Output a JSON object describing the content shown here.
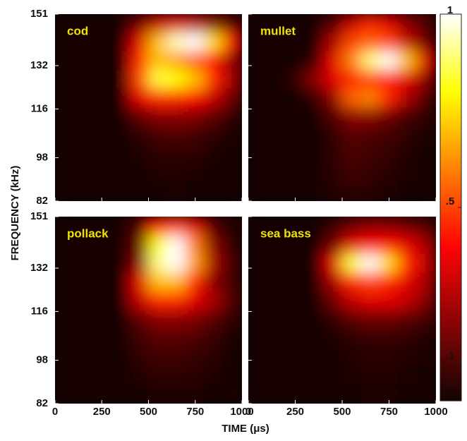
{
  "xlabel": "TIME (μs)",
  "ylabel": "FREQUENCY (kHz)",
  "colorbar": {
    "colormap": "hot",
    "lim": [
      0,
      1
    ],
    "ticks": [
      {
        "value": 0.1,
        "label": ".1"
      },
      {
        "value": 0.5,
        "label": ".5"
      },
      {
        "value": 1,
        "label": "1"
      }
    ]
  },
  "chart_data": [
    {
      "type": "heatmap",
      "title": "cod",
      "xbins": [
        0,
        100,
        200,
        300,
        400,
        500,
        600,
        700,
        800,
        900,
        1000
      ],
      "ybins": [
        151,
        144.1,
        137.2,
        130.3,
        123.4,
        116.5,
        109.6,
        102.7,
        95.8,
        88.9,
        82
      ],
      "xlim": [
        0,
        1000
      ],
      "ylim": [
        82,
        151
      ],
      "xticks": [
        0,
        250,
        500,
        750,
        1000
      ],
      "yticks": [
        82,
        98,
        116,
        132,
        151
      ],
      "z": [
        [
          0,
          0,
          0,
          0,
          0.15,
          0.3,
          0.35,
          0.3,
          0.2,
          0.1
        ],
        [
          0,
          0,
          0,
          0,
          0.35,
          0.7,
          0.95,
          1,
          0.75,
          0.4
        ],
        [
          0,
          0,
          0,
          0,
          0.45,
          0.7,
          0.65,
          0.55,
          0.4,
          0.2
        ],
        [
          0,
          0,
          0,
          0,
          0.5,
          0.85,
          0.8,
          0.7,
          0.45,
          0.25
        ],
        [
          0,
          0,
          0,
          0,
          0.35,
          0.45,
          0.45,
          0.4,
          0.3,
          0.15
        ],
        [
          0,
          0,
          0,
          0,
          0.12,
          0.2,
          0.2,
          0.18,
          0.12,
          0.05
        ],
        [
          0,
          0,
          0,
          0,
          0.05,
          0.08,
          0.1,
          0.08,
          0.05,
          0.02
        ],
        [
          0,
          0,
          0,
          0,
          0.02,
          0.05,
          0.05,
          0.05,
          0.02,
          0
        ],
        [
          0,
          0,
          0,
          0,
          0.01,
          0.03,
          0.03,
          0.02,
          0.01,
          0
        ],
        [
          0,
          0,
          0,
          0,
          0,
          0.01,
          0.02,
          0.01,
          0,
          0
        ]
      ]
    },
    {
      "type": "heatmap",
      "title": "mullet",
      "xbins": [
        0,
        100,
        200,
        300,
        400,
        500,
        600,
        700,
        800,
        900,
        1000
      ],
      "ybins": [
        151,
        144.1,
        137.2,
        130.3,
        123.4,
        116.5,
        109.6,
        102.7,
        95.8,
        88.9,
        82
      ],
      "xlim": [
        0,
        1000
      ],
      "ylim": [
        82,
        151
      ],
      "xticks": [
        0,
        250,
        500,
        750,
        1000
      ],
      "yticks": [
        82,
        98,
        116,
        132,
        151
      ],
      "z": [
        [
          0,
          0,
          0,
          0,
          0.1,
          0.3,
          0.45,
          0.35,
          0.2,
          0.1
        ],
        [
          0,
          0,
          0,
          0,
          0.25,
          0.5,
          0.55,
          0.5,
          0.3,
          0.15
        ],
        [
          0,
          0,
          0,
          0.05,
          0.35,
          0.6,
          0.9,
          1,
          0.7,
          0.35
        ],
        [
          0,
          0,
          0.05,
          0.2,
          0.35,
          0.45,
          0.5,
          0.45,
          0.35,
          0.2
        ],
        [
          0,
          0,
          0,
          0.05,
          0.2,
          0.55,
          0.6,
          0.45,
          0.25,
          0.1
        ],
        [
          0,
          0,
          0,
          0,
          0.1,
          0.2,
          0.2,
          0.15,
          0.08,
          0.04
        ],
        [
          0,
          0,
          0,
          0,
          0.05,
          0.12,
          0.1,
          0.08,
          0.05,
          0.02
        ],
        [
          0,
          0,
          0,
          0,
          0.05,
          0.1,
          0.08,
          0.06,
          0.03,
          0.01
        ],
        [
          0,
          0,
          0,
          0,
          0.04,
          0.08,
          0.06,
          0.04,
          0.02,
          0
        ],
        [
          0,
          0,
          0,
          0,
          0.03,
          0.05,
          0.04,
          0.02,
          0,
          0
        ]
      ]
    },
    {
      "type": "heatmap",
      "title": "pollack",
      "xbins": [
        0,
        100,
        200,
        300,
        400,
        500,
        600,
        700,
        800,
        900,
        1000
      ],
      "ybins": [
        151,
        144.1,
        137.2,
        130.3,
        123.4,
        116.5,
        109.6,
        102.7,
        95.8,
        88.9,
        82
      ],
      "xlim": [
        0,
        1000
      ],
      "ylim": [
        82,
        151
      ],
      "xticks": [
        0,
        250,
        500,
        750,
        1000
      ],
      "yticks": [
        82,
        98,
        116,
        132,
        151
      ],
      "z": [
        [
          0,
          0,
          0,
          0,
          0.1,
          0.4,
          0.5,
          0.35,
          0.1,
          0.03
        ],
        [
          0,
          0,
          0,
          0,
          0.15,
          0.8,
          1,
          0.6,
          0.2,
          0.05
        ],
        [
          0,
          0,
          0,
          0,
          0.2,
          0.9,
          1,
          0.65,
          0.25,
          0.08
        ],
        [
          0,
          0,
          0,
          0,
          0.35,
          0.7,
          0.7,
          0.45,
          0.2,
          0.08
        ],
        [
          0,
          0,
          0,
          0,
          0.3,
          0.45,
          0.45,
          0.35,
          0.25,
          0.1
        ],
        [
          0,
          0,
          0,
          0,
          0.12,
          0.2,
          0.2,
          0.18,
          0.12,
          0.05
        ],
        [
          0,
          0,
          0,
          0,
          0.08,
          0.12,
          0.12,
          0.1,
          0.06,
          0.02
        ],
        [
          0,
          0,
          0,
          0,
          0.05,
          0.08,
          0.08,
          0.06,
          0.04,
          0.01
        ],
        [
          0,
          0,
          0,
          0,
          0.03,
          0.05,
          0.05,
          0.04,
          0.02,
          0
        ],
        [
          0,
          0,
          0,
          0,
          0.01,
          0.02,
          0.02,
          0.02,
          0.01,
          0
        ]
      ]
    },
    {
      "type": "heatmap",
      "title": "sea bass",
      "xbins": [
        0,
        100,
        200,
        300,
        400,
        500,
        600,
        700,
        800,
        900,
        1000
      ],
      "ybins": [
        151,
        144.1,
        137.2,
        130.3,
        123.4,
        116.5,
        109.6,
        102.7,
        95.8,
        88.9,
        82
      ],
      "xlim": [
        0,
        1000
      ],
      "ylim": [
        82,
        151
      ],
      "xticks": [
        0,
        250,
        500,
        750,
        1000
      ],
      "yticks": [
        82,
        98,
        116,
        132,
        151
      ],
      "z": [
        [
          0,
          0,
          0,
          0,
          0.05,
          0.15,
          0.2,
          0.2,
          0.15,
          0.1
        ],
        [
          0,
          0,
          0,
          0,
          0.15,
          0.35,
          0.4,
          0.4,
          0.35,
          0.25
        ],
        [
          0,
          0,
          0,
          0,
          0.35,
          0.85,
          1,
          0.75,
          0.45,
          0.3
        ],
        [
          0,
          0,
          0,
          0,
          0.25,
          0.45,
          0.5,
          0.45,
          0.35,
          0.25
        ],
        [
          0,
          0,
          0,
          0,
          0.15,
          0.3,
          0.35,
          0.35,
          0.3,
          0.2
        ],
        [
          0,
          0,
          0,
          0,
          0.05,
          0.12,
          0.15,
          0.15,
          0.12,
          0.08
        ],
        [
          0,
          0,
          0,
          0,
          0.02,
          0.05,
          0.06,
          0.06,
          0.05,
          0.03
        ],
        [
          0,
          0,
          0,
          0,
          0.01,
          0.03,
          0.04,
          0.04,
          0.03,
          0.02
        ],
        [
          0,
          0,
          0,
          0,
          0,
          0.02,
          0.03,
          0.03,
          0.02,
          0.01
        ],
        [
          0,
          0,
          0,
          0,
          0,
          0.01,
          0.02,
          0.02,
          0.01,
          0
        ]
      ]
    }
  ]
}
